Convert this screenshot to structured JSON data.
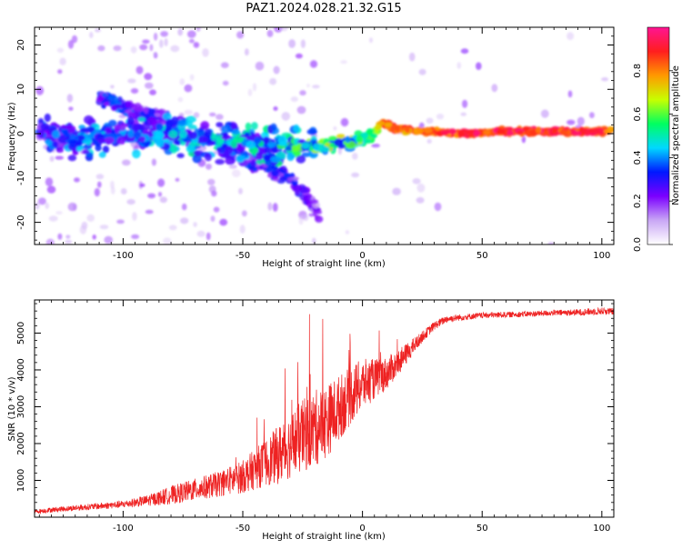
{
  "figure": {
    "title": "PAZ1.2024.028.21.32.G15"
  },
  "colorbar": {
    "label": "Normalized spectral amplitude",
    "ticks": [
      "0.0",
      "0.2",
      "0.4",
      "0.6",
      "0.8"
    ],
    "tick_values": [
      0.0,
      0.2,
      0.4,
      0.6,
      0.8
    ],
    "range": [
      0,
      1
    ],
    "colormap": [
      "#ffffff",
      "#c9a7f5",
      "#7b00ff",
      "#0018ff",
      "#00d8ff",
      "#00ff60",
      "#c8ff00",
      "#ff9900",
      "#ff1e1e",
      "#ff1493"
    ]
  },
  "chart_data": [
    {
      "type": "heatmap",
      "title": "",
      "xlabel": "Height of straight line (km)",
      "ylabel": "Frequency (Hz)",
      "xlim": [
        -137,
        105
      ],
      "ylim": [
        -25,
        24
      ],
      "xticks": [
        -100,
        -50,
        0,
        50,
        100
      ],
      "xtick_labels": [
        "-100",
        "-50",
        "0",
        "50",
        "100"
      ],
      "yticks": [
        -20,
        -10,
        0,
        10,
        20
      ],
      "ytick_labels": [
        "-20",
        "-10",
        "0",
        "10",
        "20"
      ],
      "ridge": {
        "x": [
          -135,
          -120,
          -100,
          -80,
          -60,
          -45,
          -30,
          -20,
          -10,
          -5,
          0,
          5,
          8,
          15,
          25,
          40,
          60,
          80,
          104
        ],
        "y": [
          0.5,
          -1.5,
          0,
          -0.5,
          -2,
          -2,
          -3,
          -3,
          -2,
          -2,
          -1,
          0,
          2.5,
          1,
          0.5,
          0,
          0.5,
          0.5,
          0.5
        ],
        "amplitude": [
          0.3,
          0.35,
          0.35,
          0.38,
          0.4,
          0.4,
          0.45,
          0.5,
          0.55,
          0.55,
          0.55,
          0.6,
          0.9,
          0.85,
          0.9,
          0.92,
          0.95,
          0.95,
          0.9
        ]
      },
      "branches": [
        {
          "x": [
            -60,
            -45,
            -30,
            -22,
            -18
          ],
          "y": [
            -3,
            -7,
            -10,
            -15,
            -19
          ],
          "amplitude": [
            0.3,
            0.3,
            0.3,
            0.25,
            0.2
          ]
        },
        {
          "x": [
            -110,
            -100,
            -90,
            -80
          ],
          "y": [
            8,
            6,
            4,
            3
          ],
          "amplitude": [
            0.3,
            0.35,
            0.3,
            0.25
          ]
        }
      ]
    },
    {
      "type": "line",
      "title": "",
      "xlabel": "Height of straight line (km)",
      "ylabel": "SNR (10 * v/v)",
      "xlim": [
        -137,
        105
      ],
      "ylim": [
        0,
        5900
      ],
      "xticks": [
        -100,
        -50,
        0,
        50,
        100
      ],
      "xtick_labels": [
        "-100",
        "-50",
        "0",
        "50",
        "100"
      ],
      "yticks": [
        1000,
        2000,
        3000,
        4000,
        5000
      ],
      "ytick_labels": [
        "1000",
        "2000",
        "3000",
        "4000",
        "5000"
      ],
      "line_color": "#ee2222",
      "series": [
        {
          "x": [
            -137,
            -130,
            -120,
            -110,
            -100,
            -90,
            -85,
            -80,
            -70,
            -60,
            -50,
            -45,
            -40,
            -35,
            -30,
            -25,
            -20,
            -15,
            -10,
            -5,
            0,
            5,
            10,
            15,
            20,
            25,
            30,
            35,
            40,
            50,
            60,
            70,
            80,
            90,
            100,
            105
          ],
          "values": [
            150,
            200,
            250,
            300,
            350,
            450,
            520,
            600,
            750,
            900,
            1100,
            1300,
            1500,
            1700,
            1950,
            2200,
            2400,
            2600,
            2950,
            3300,
            3600,
            3750,
            3900,
            4200,
            4550,
            4900,
            5200,
            5380,
            5420,
            5480,
            5500,
            5520,
            5550,
            5560,
            5600,
            5580
          ],
          "noise": [
            60,
            70,
            80,
            90,
            100,
            150,
            200,
            250,
            300,
            350,
            450,
            550,
            650,
            800,
            900,
            1000,
            1050,
            1000,
            900,
            800,
            700,
            550,
            450,
            350,
            250,
            150,
            120,
            100,
            90,
            80,
            80,
            80,
            80,
            90,
            100,
            100
          ]
        }
      ]
    }
  ]
}
